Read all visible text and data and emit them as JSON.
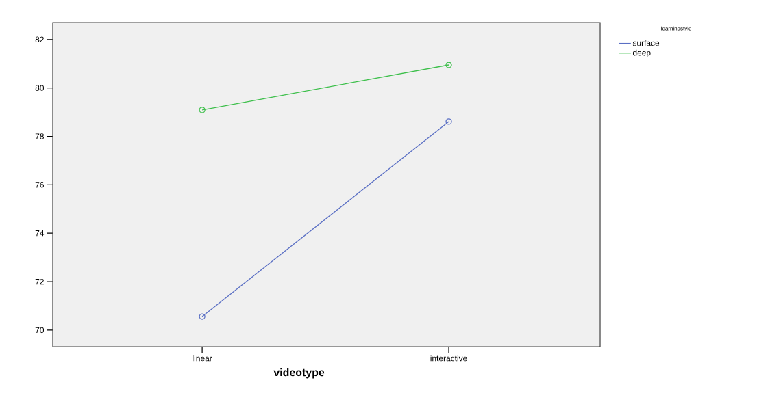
{
  "chart_data": {
    "type": "line",
    "xlabel": "videotype",
    "legend_title": "learningstyle",
    "categories": [
      "linear",
      "interactive"
    ],
    "series": [
      {
        "name": "surface",
        "color": "#5a6fc4",
        "values": [
          70.56,
          78.61
        ]
      },
      {
        "name": "deep",
        "color": "#3cbf4a",
        "values": [
          79.09,
          80.95
        ]
      }
    ],
    "ylim": [
      69.32,
      82.7
    ],
    "yticks": [
      70,
      72,
      74,
      76,
      78,
      80,
      82
    ],
    "marker": "circle",
    "legend": "top right",
    "grid": false
  }
}
